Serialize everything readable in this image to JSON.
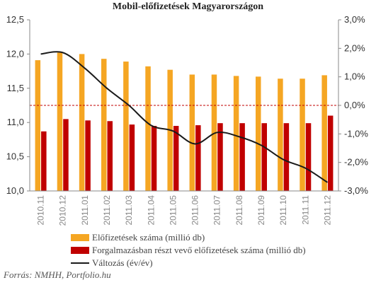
{
  "chart_data": {
    "type": "bar",
    "title": "Mobil-előfizetések  Magyarországon",
    "categories": [
      "2010.11",
      "2010.12",
      "2011.01",
      "2011.02",
      "2011.03",
      "2011.04",
      "2011.05",
      "2011.06",
      "2011.07",
      "2011.08",
      "2011.09",
      "2011.10",
      "2011.11",
      "2011.12"
    ],
    "series": [
      {
        "name": "Előfizetések száma (millió db)",
        "axis": "left",
        "kind": "bar",
        "color": "#F5A623",
        "values": [
          11.91,
          12.02,
          12.0,
          11.93,
          11.89,
          11.82,
          11.77,
          11.7,
          11.7,
          11.68,
          11.67,
          11.64,
          11.64,
          11.69
        ]
      },
      {
        "name": "Forgalmazásban részt vevő előfizetések száma (millió db)",
        "axis": "left",
        "kind": "bar",
        "color": "#C00000",
        "values": [
          10.87,
          11.05,
          11.03,
          11.02,
          10.97,
          10.95,
          10.95,
          10.96,
          10.99,
          10.99,
          10.99,
          10.99,
          10.99,
          11.1
        ]
      },
      {
        "name": "Változás (év/év)",
        "axis": "right",
        "kind": "line",
        "color": "#1a1a1a",
        "values": [
          1.8,
          1.85,
          1.3,
          0.6,
          0.0,
          -0.7,
          -0.9,
          -1.35,
          -0.95,
          -1.1,
          -1.4,
          -1.9,
          -2.2,
          -2.7
        ]
      }
    ],
    "y_left": {
      "ylim": [
        10.0,
        12.5
      ],
      "ticks": [
        "10,0",
        "10,5",
        "11,0",
        "11,5",
        "12,0",
        "12,5"
      ]
    },
    "y_right": {
      "ylim": [
        -3.0,
        3.0
      ],
      "ticks": [
        "-3,0%",
        "-2,0%",
        "-1,0%",
        "0,0%",
        "1,0%",
        "2,0%",
        "3,0%"
      ],
      "reference_line": 0.0,
      "reference_color": "#C00000"
    },
    "legend": "bottom-left",
    "grid": false
  },
  "footer": {
    "source": "Forrás: NMHH, Portfolio.hu"
  }
}
